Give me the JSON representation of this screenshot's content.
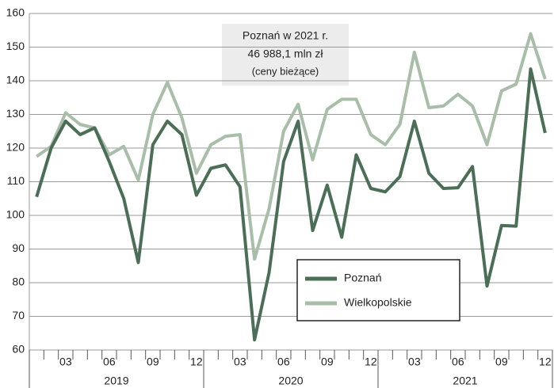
{
  "chart_data": {
    "type": "line",
    "annotation": [
      "Poznań w 2021 r.",
      "46 988,1 mln zł",
      "(ceny bieżące)"
    ],
    "categories": [
      null,
      null,
      "03",
      null,
      null,
      "06",
      null,
      null,
      "09",
      null,
      null,
      "12",
      null,
      null,
      "03",
      null,
      null,
      "06",
      null,
      null,
      "09",
      null,
      null,
      "12",
      null,
      null,
      "03",
      null,
      null,
      "06",
      null,
      null,
      "09",
      null,
      null,
      "12"
    ],
    "years": [
      "2019",
      "2020",
      "2021"
    ],
    "series": [
      {
        "name": "Poznań",
        "color": "#4b6e56",
        "values": [
          105.5,
          120,
          128,
          124,
          126,
          116,
          105,
          86,
          121,
          128,
          124,
          106,
          114,
          115,
          108.5,
          63,
          83,
          116,
          128,
          95.5,
          109,
          93.5,
          118,
          108,
          107,
          111.5,
          128,
          112.5,
          108,
          108.2,
          114.5,
          79,
          97,
          96.8,
          143.5,
          124.5
        ]
      },
      {
        "name": "Wielkopolskie",
        "color": "#a9bea9",
        "values": [
          117.5,
          120.5,
          130.5,
          127,
          126,
          118,
          120.5,
          110.5,
          130,
          139.5,
          129,
          112.5,
          121,
          123.5,
          124,
          87,
          102,
          125,
          133,
          116.5,
          131.5,
          134.5,
          134.5,
          124,
          121,
          127,
          148.5,
          132,
          132.5,
          136,
          132.5,
          121,
          137,
          139,
          154,
          140.5
        ]
      }
    ],
    "ylim": [
      60,
      160
    ],
    "yticks": [
      60,
      70,
      80,
      90,
      100,
      110,
      120,
      130,
      140,
      150,
      160
    ],
    "grid": true
  }
}
